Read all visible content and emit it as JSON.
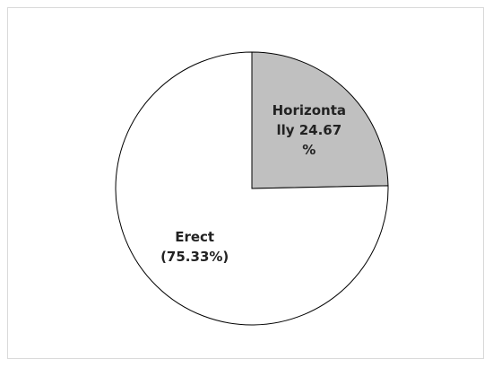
{
  "chart_data": {
    "type": "pie",
    "categories": [
      "Horizontally",
      "Erect"
    ],
    "values": [
      24.67,
      75.33
    ],
    "value_labels": [
      "Horizontally 24.67 %",
      "Erect (75.33%)"
    ],
    "colors": [
      "#c0c0c0",
      "#ffffff"
    ]
  }
}
